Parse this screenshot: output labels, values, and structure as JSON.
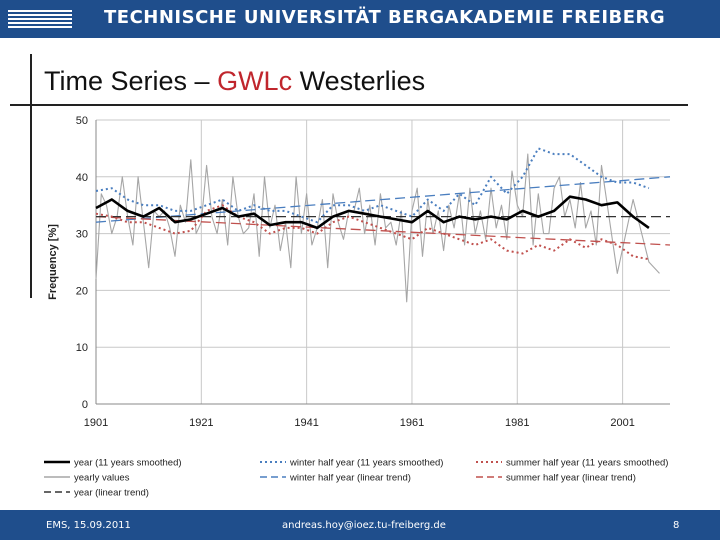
{
  "header": {
    "institution": "TECHNISCHE UNIVERSITÄT BERGAKADEMIE FREIBERG"
  },
  "slide": {
    "title_pre": "Time Series – ",
    "title_hl": "GWLc",
    "title_post": " Westerlies"
  },
  "footer": {
    "left": "EMS, 15.09.2011",
    "center": "andreas.hoy@ioez.tu-freiberg.de",
    "page": "8"
  },
  "colors": {
    "brand": "#1f4e8c",
    "highlight": "#c0262d",
    "year": "#000000",
    "winter": "#4a7ebf",
    "summer": "#c0504d",
    "yearly": "#a6a6a6"
  },
  "chart_data": {
    "type": "line",
    "ylabel": "Frequency [%]",
    "xlim": [
      1901,
      2010
    ],
    "ylim": [
      0,
      50
    ],
    "xticks": [
      1901,
      1921,
      1941,
      1961,
      1981,
      2001
    ],
    "yticks": [
      0,
      10,
      20,
      30,
      40,
      50
    ],
    "grid": true,
    "legend_position": "bottom",
    "series": [
      {
        "name": "year (11 years smoothed)",
        "style": "solid-thick",
        "color": "#000000",
        "x": [
          1901,
          1904,
          1907,
          1910,
          1913,
          1916,
          1919,
          1922,
          1925,
          1928,
          1931,
          1934,
          1937,
          1940,
          1943,
          1946,
          1949,
          1952,
          1955,
          1958,
          1961,
          1964,
          1967,
          1970,
          1973,
          1976,
          1979,
          1982,
          1985,
          1988,
          1991,
          1994,
          1997,
          2000,
          2003,
          2006
        ],
        "y": [
          34.5,
          36,
          34,
          33,
          34.5,
          32,
          32.5,
          33.5,
          34.5,
          33,
          33.5,
          31.5,
          32,
          32,
          31,
          33,
          34,
          33.5,
          33,
          32.5,
          32,
          34,
          32,
          33,
          32.5,
          33,
          32.5,
          34,
          33,
          34,
          36.5,
          36,
          35,
          35.5,
          33,
          31
        ]
      },
      {
        "name": "winter half year (11 years smoothed)",
        "style": "dotted",
        "color": "#4a7ebf",
        "x": [
          1901,
          1904,
          1907,
          1910,
          1913,
          1916,
          1919,
          1922,
          1925,
          1928,
          1931,
          1934,
          1937,
          1940,
          1943,
          1946,
          1949,
          1952,
          1955,
          1958,
          1961,
          1964,
          1967,
          1970,
          1973,
          1976,
          1979,
          1982,
          1985,
          1988,
          1991,
          1994,
          1997,
          2000,
          2003,
          2006
        ],
        "y": [
          37.5,
          38,
          36,
          35,
          35,
          34,
          34,
          35,
          36,
          34,
          35,
          34,
          34,
          33,
          32,
          35,
          35,
          34,
          35,
          34,
          33,
          36,
          34,
          37,
          35,
          40,
          37,
          40,
          45,
          44,
          44,
          42,
          40,
          39,
          39,
          38
        ]
      },
      {
        "name": "summer half year (11 years smoothed)",
        "style": "dotted",
        "color": "#c0504d",
        "x": [
          1901,
          1904,
          1907,
          1910,
          1913,
          1916,
          1919,
          1922,
          1925,
          1928,
          1931,
          1934,
          1937,
          1940,
          1943,
          1946,
          1949,
          1952,
          1955,
          1958,
          1961,
          1964,
          1967,
          1970,
          1973,
          1976,
          1979,
          1982,
          1985,
          1988,
          1991,
          1994,
          1997,
          2000,
          2003,
          2006
        ],
        "y": [
          33.5,
          33,
          32,
          32,
          31,
          30,
          30.5,
          34,
          35,
          33,
          32,
          30,
          31,
          31,
          30,
          32,
          33,
          32,
          31,
          30,
          29,
          31,
          30,
          29,
          28,
          29,
          27,
          26.5,
          28,
          27,
          29,
          27.5,
          29,
          28,
          26,
          25.5
        ]
      },
      {
        "name": "yearly values",
        "style": "thin",
        "color": "#a6a6a6",
        "x": [
          1901,
          1902,
          1903,
          1904,
          1905,
          1906,
          1907,
          1908,
          1909,
          1910,
          1911,
          1912,
          1913,
          1914,
          1915,
          1916,
          1917,
          1918,
          1919,
          1920,
          1921,
          1922,
          1923,
          1924,
          1925,
          1926,
          1927,
          1928,
          1929,
          1930,
          1931,
          1932,
          1933,
          1934,
          1935,
          1936,
          1937,
          1938,
          1939,
          1940,
          1941,
          1942,
          1943,
          1944,
          1945,
          1946,
          1947,
          1948,
          1949,
          1950,
          1951,
          1952,
          1953,
          1954,
          1955,
          1956,
          1957,
          1958,
          1959,
          1960,
          1961,
          1962,
          1963,
          1964,
          1965,
          1966,
          1967,
          1968,
          1969,
          1970,
          1971,
          1972,
          1973,
          1974,
          1975,
          1976,
          1977,
          1978,
          1979,
          1980,
          1981,
          1982,
          1983,
          1984,
          1985,
          1986,
          1987,
          1988,
          1989,
          1990,
          1991,
          1992,
          1993,
          1994,
          1995,
          1996,
          1997,
          2000,
          2003,
          2006,
          2008
        ],
        "y": [
          22,
          37,
          35,
          30,
          33,
          40,
          33,
          28,
          40,
          32,
          24,
          34,
          33,
          34,
          31,
          26,
          35,
          32,
          43,
          30,
          32,
          42,
          33,
          30,
          36,
          28,
          40,
          33,
          30,
          31,
          37,
          26,
          40,
          31,
          35,
          27,
          32,
          24,
          40,
          30,
          37,
          28,
          31,
          36,
          24,
          37,
          32,
          29,
          34,
          34,
          38,
          30,
          35,
          28,
          37,
          31,
          32,
          28,
          34,
          18,
          34,
          38,
          26,
          36,
          30,
          34,
          27,
          35,
          31,
          37,
          28,
          38,
          30,
          34,
          29,
          38,
          31,
          35,
          29,
          41,
          35,
          33,
          44,
          28,
          37,
          30,
          30,
          38,
          40,
          33,
          36,
          31,
          39,
          31,
          34,
          28,
          42,
          23,
          36,
          25,
          23
        ]
      },
      {
        "name": "winter half year (linear trend)",
        "style": "dashed",
        "color": "#4a7ebf",
        "x": [
          1901,
          2010
        ],
        "y": [
          32,
          40
        ]
      },
      {
        "name": "summer half year (linear trend)",
        "style": "dashed",
        "color": "#c0504d",
        "x": [
          1901,
          2010
        ],
        "y": [
          33,
          28
        ]
      },
      {
        "name": "year (linear trend)",
        "style": "dashed",
        "color": "#333333",
        "x": [
          1901,
          2010
        ],
        "y": [
          33,
          33
        ]
      }
    ]
  }
}
